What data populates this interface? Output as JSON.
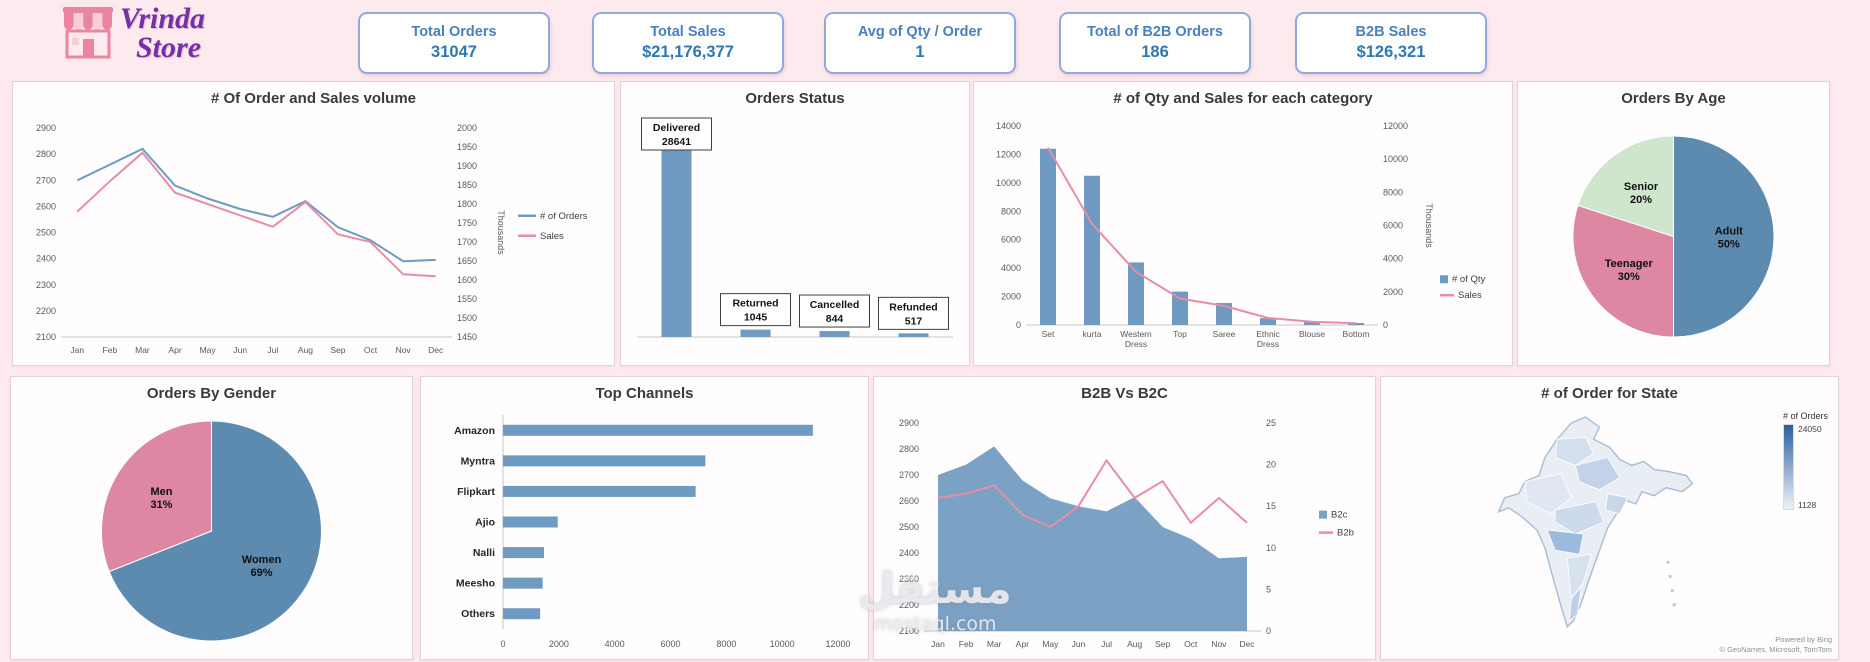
{
  "header": {
    "logo": {
      "line1": "Vrinda",
      "line2": "Store"
    },
    "kpis": [
      {
        "label": "Total Orders",
        "value": "31047"
      },
      {
        "label": "Total Sales",
        "value": "$21,176,377"
      },
      {
        "label": "Avg of Qty / Order",
        "value": "1"
      },
      {
        "label": "Total of B2B Orders",
        "value": "186"
      },
      {
        "label": "B2B Sales",
        "value": "$126,321"
      }
    ]
  },
  "watermark": {
    "arabic": "مستقل",
    "latin": "mostaql.com"
  },
  "colors": {
    "accent_blue": "#6f9ac1",
    "accent_pink": "#e78da8",
    "kpi_text": "#2d77b4",
    "background": "#fdeaee"
  },
  "chart_data": [
    {
      "id": "orders-and-sales-volume",
      "type": "line",
      "title": "# Of Order and Sales volume",
      "x": [
        "Jan",
        "Feb",
        "Mar",
        "Apr",
        "May",
        "Jun",
        "Jul",
        "Aug",
        "Sep",
        "Oct",
        "Nov",
        "Dec"
      ],
      "left_axis": {
        "min": 2100,
        "max": 2900,
        "step": 100
      },
      "right_axis": {
        "min": 1450,
        "max": 2000,
        "step": 50,
        "label": "Thousands"
      },
      "series": [
        {
          "name": "# of Orders",
          "axis": "left",
          "color": "#6f9ac1",
          "values": [
            2700,
            2760,
            2820,
            2680,
            2630,
            2590,
            2560,
            2620,
            2520,
            2470,
            2390,
            2395
          ]
        },
        {
          "name": "Sales",
          "axis": "right",
          "color": "#e78da8",
          "values": [
            1780,
            1860,
            1935,
            1830,
            1800,
            1770,
            1740,
            1805,
            1720,
            1700,
            1615,
            1610
          ]
        }
      ],
      "legend_position": "right",
      "grid": false
    },
    {
      "id": "orders-status",
      "type": "status-bar",
      "title": "Orders Status",
      "categories": [
        "Delivered",
        "Returned",
        "Cancelled",
        "Refunded"
      ],
      "values": [
        28641,
        1045,
        844,
        517
      ],
      "axis_max": 31000,
      "bar_color": "#6f9ac1"
    },
    {
      "id": "qty-sales-by-category",
      "type": "combo",
      "title": "# of Qty and Sales for each category",
      "categories": [
        "Set",
        "kurta",
        "Western Dress",
        "Top",
        "Saree",
        "Ethnic Dress",
        "Blouse",
        "Bottom"
      ],
      "left_axis": {
        "min": 0,
        "max": 14000,
        "step": 2000
      },
      "right_axis": {
        "min": 0,
        "max": 12000,
        "step": 2000,
        "label": "Thousands"
      },
      "bars": {
        "name": "# of Qty",
        "color": "#6f9ac1",
        "values": [
          12400,
          10500,
          4400,
          2350,
          1550,
          480,
          260,
          140
        ]
      },
      "line": {
        "name": "Sales",
        "color": "#e78da8",
        "values": [
          10700,
          6100,
          3200,
          1600,
          1150,
          420,
          200,
          100
        ]
      },
      "legend_position": "right",
      "grid": false
    },
    {
      "id": "orders-by-age",
      "type": "pie",
      "title": "Orders By Age",
      "pad": 24,
      "slices": [
        {
          "label": "Adult",
          "pct": 50,
          "color": "#5d8bb0"
        },
        {
          "label": "Teenager",
          "pct": 30,
          "color": "#dd87a2"
        },
        {
          "label": "Senior",
          "pct": 20,
          "color": "#cfe6cd"
        }
      ]
    },
    {
      "id": "orders-by-gender",
      "type": "pie",
      "title": "Orders By Gender",
      "pad": 14,
      "slices": [
        {
          "label": "Women",
          "pct": 69,
          "color": "#5d8bb0"
        },
        {
          "label": "Men",
          "pct": 31,
          "color": "#dd87a2"
        }
      ]
    },
    {
      "id": "top-channels",
      "type": "hbar",
      "title": "Top Channels",
      "categories": [
        "Amazon",
        "Myntra",
        "Flipkart",
        "Ajio",
        "Nalli",
        "Meesho",
        "Others"
      ],
      "values": [
        11100,
        7250,
        6900,
        1960,
        1470,
        1420,
        1330
      ],
      "x_axis": {
        "min": 0,
        "max": 12000,
        "step": 2000
      },
      "bar_color": "#6f9ac1",
      "grid": false
    },
    {
      "id": "b2b-vs-b2c",
      "type": "area-line",
      "title": "B2B Vs B2C",
      "x": [
        "Jan",
        "Feb",
        "Mar",
        "Apr",
        "May",
        "Jun",
        "Jul",
        "Aug",
        "Sep",
        "Oct",
        "Nov",
        "Dec"
      ],
      "left_axis": {
        "min": 2100,
        "max": 2900,
        "step": 100
      },
      "right_axis": {
        "min": 0,
        "max": 25,
        "step": 5
      },
      "area": {
        "name": "B2c",
        "color": "#7ba1c4",
        "values": [
          2700,
          2740,
          2810,
          2680,
          2610,
          2580,
          2560,
          2615,
          2500,
          2455,
          2380,
          2385
        ]
      },
      "line": {
        "name": "B2b",
        "color": "#e78da8",
        "values": [
          16,
          16.5,
          17.5,
          14,
          12.5,
          15,
          20.5,
          16,
          18,
          13,
          16,
          13
        ]
      },
      "legend_position": "right",
      "grid": false
    },
    {
      "id": "orders-by-state",
      "type": "map",
      "title": "# of Order for State",
      "legend": {
        "label": "# of Orders",
        "max": "24050",
        "min": "1128",
        "top_color": "#2d5f9f",
        "bottom_color": "#eef2f8"
      },
      "attribution": [
        "Powered by Bing",
        "© GeoNames, Microsoft, TomTom"
      ]
    }
  ]
}
